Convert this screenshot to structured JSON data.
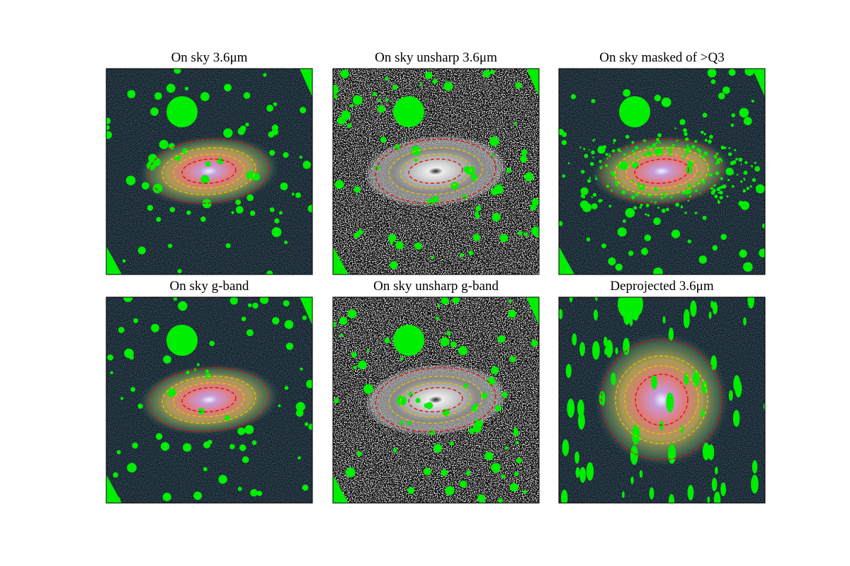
{
  "figure": {
    "panels": [
      {
        "title": "On sky 3.6μm"
      },
      {
        "title": "On sky unsharp 3.6μm"
      },
      {
        "title": "On sky masked of >Q3"
      },
      {
        "title": "On sky g-band"
      },
      {
        "title": "On sky unsharp g-band"
      },
      {
        "title": "Deprojected 3.6μm"
      }
    ]
  }
}
